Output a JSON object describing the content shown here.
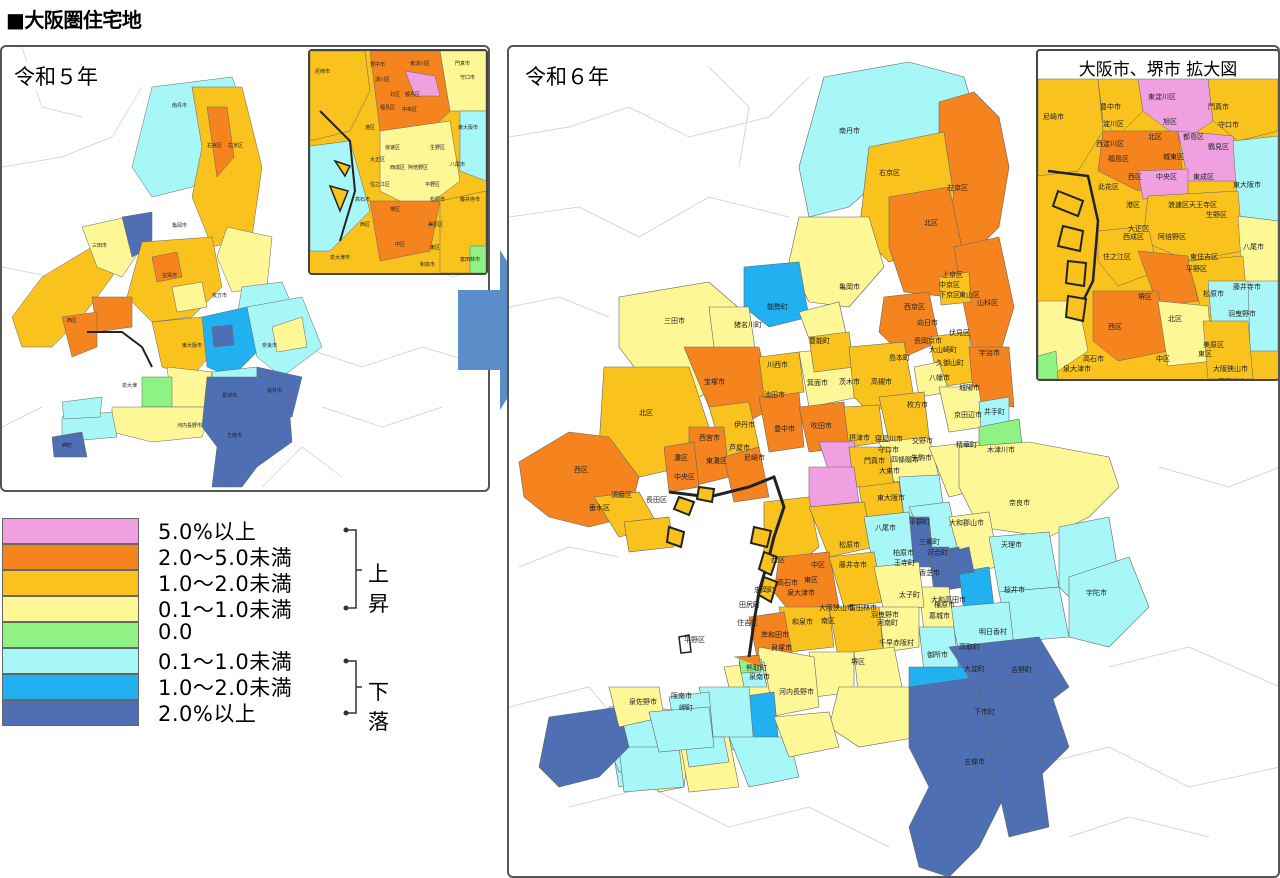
{
  "title": "■大阪圏住宅地",
  "panels": {
    "r5": {
      "label": "令和５年"
    },
    "r6": {
      "label": "令和６年",
      "inset_title": "大阪市、堺市 拡大図"
    }
  },
  "legend": {
    "items": [
      {
        "label": "5.0%以上",
        "color": "#f0a0e0"
      },
      {
        "label": "2.0～5.0未満",
        "color": "#f5841f"
      },
      {
        "label": "1.0～2.0未満",
        "color": "#f9c21c"
      },
      {
        "label": "0.1～1.0未満",
        "color": "#fdf796"
      },
      {
        "label": "0.0",
        "color": "#8ef382"
      },
      {
        "label": "0.1～1.0未満",
        "color": "#a8f7f8"
      },
      {
        "label": "1.0～2.0未満",
        "color": "#22b1f0"
      },
      {
        "label": "2.0%以上",
        "color": "#4f6fb5"
      }
    ],
    "groups": {
      "rise": "上昇",
      "fall": "下落"
    }
  },
  "r6_labels": [
    "南丹市",
    "右京区",
    "左京区",
    "北区",
    "亀岡市",
    "能勢町",
    "上京区",
    "中京区",
    "下京区",
    "東山区",
    "山科区",
    "西京区",
    "向日市",
    "長岡京市",
    "伏見区",
    "大山崎町",
    "宇治市",
    "島本町",
    "久御山町",
    "豊能町",
    "三田市",
    "猪名川町",
    "川西市",
    "箕面市",
    "茨木市",
    "高槻市",
    "城陽市",
    "八幡市",
    "枚方市",
    "宝塚市",
    "池田市",
    "京田辺市",
    "井手町",
    "北区",
    "伊丹市",
    "豊中市",
    "吹田市",
    "交野市",
    "寝屋川市",
    "摂津市",
    "精華町",
    "木津川市",
    "西宮市",
    "芦屋市",
    "尼崎市",
    "灘区",
    "東灘区",
    "守口市",
    "門真市",
    "四條畷市",
    "大東市",
    "生駒市",
    "中央区",
    "長田区",
    "須磨区",
    "垂水区",
    "西区",
    "東大阪市",
    "奈良市",
    "八尾市",
    "平群町",
    "大和郡山市",
    "天理市",
    "桜井市",
    "宇陀市",
    "柏原市",
    "三郷町",
    "香芝市",
    "王寺町",
    "河合町",
    "葛城市",
    "大和高田市",
    "橿原市",
    "明日香村",
    "御所市",
    "高取町",
    "大淀町",
    "吉野町",
    "下市町",
    "五條市",
    "太子町",
    "河南町",
    "千早赤阪村",
    "羽曳野市",
    "富田林市",
    "大阪狭山市",
    "南区",
    "和泉市",
    "岸和田市",
    "貝塚市",
    "熊取町",
    "泉南市",
    "阪南市",
    "岬町",
    "泉佐野市",
    "河内長野市",
    "堺区",
    "中区",
    "東区",
    "西区",
    "高石市",
    "泉大津市",
    "忠岡町",
    "田尻町",
    "住吉区",
    "平野区",
    "松原市",
    "藤井寺市"
  ],
  "r6_inset_labels": [
    "尼崎市",
    "豊中市",
    "東淀川区",
    "門真市",
    "淀川区",
    "旭区",
    "守口市",
    "鶴見区",
    "西淀川区",
    "北区",
    "都島区",
    "城東区",
    "福島区",
    "中央区",
    "此花区",
    "西区",
    "東成区",
    "東大阪市",
    "港区",
    "浪速区天王寺区",
    "生野区",
    "大正区",
    "西成区",
    "阿倍野区",
    "八尾市",
    "住之江区",
    "東住吉区",
    "平野区",
    "松原市",
    "藤井寺市",
    "羽曳野市",
    "堺区",
    "北区",
    "西区",
    "美原区",
    "高石市",
    "中区",
    "東区",
    "大阪狭山市",
    "泉大津市",
    "富田林市",
    "南区"
  ],
  "r5_inset_labels": [
    "尼崎市",
    "豊中市",
    "東淀川区",
    "門真市",
    "淀川区",
    "守口市",
    "北区",
    "都島区",
    "東大阪市",
    "福島区",
    "中央区",
    "港区",
    "浪速区",
    "生野区",
    "大正区",
    "西成区",
    "阿倍野区",
    "住之江区",
    "平野区",
    "八尾市",
    "堺区",
    "松原市",
    "藤井寺市",
    "美原区",
    "高石市",
    "西区",
    "中区",
    "東区",
    "泉大津市",
    "和泉市",
    "富田林市"
  ]
}
